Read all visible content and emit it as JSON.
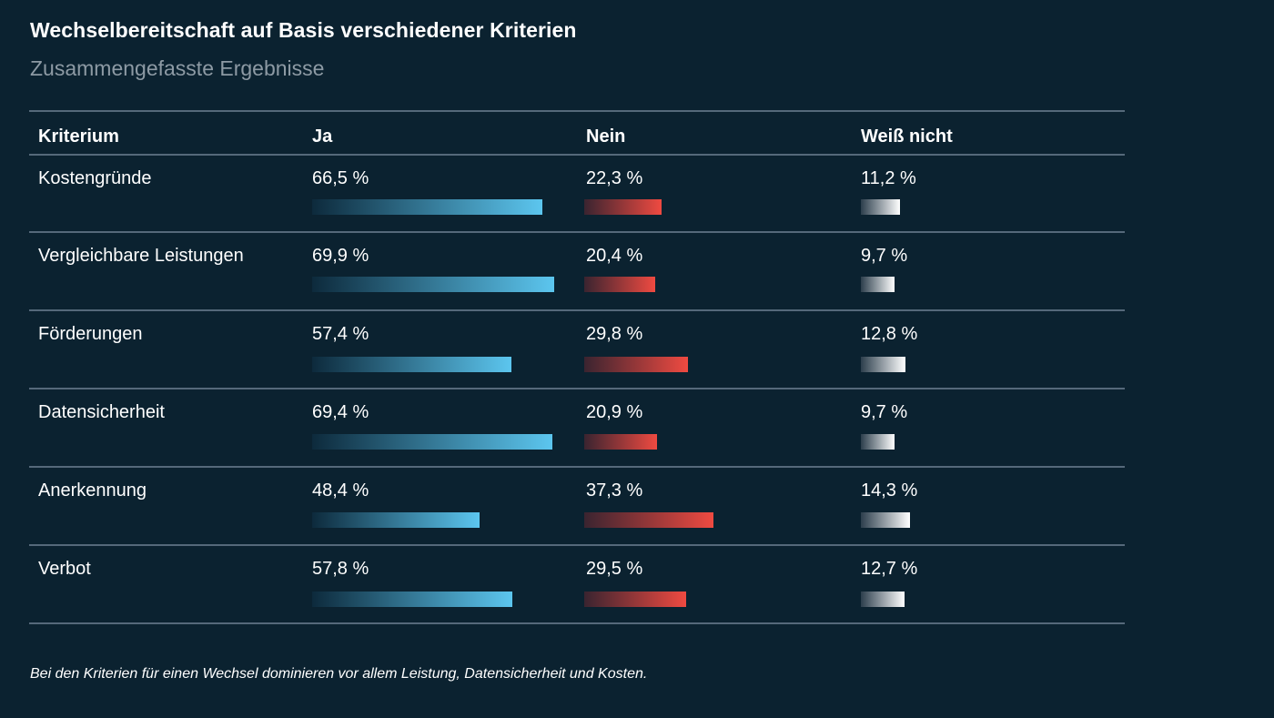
{
  "title": "Wechselbereitschaft auf Basis verschiedener Kriterien",
  "subtitle": "Zusammengefasste Ergebnisse",
  "footnote": "Bei den Kriterien für einen Wechsel dominieren vor allem Leistung, Datensicherheit und Kosten.",
  "columns": {
    "kriterium": "Kriterium",
    "ja": "Ja",
    "nein": "Nein",
    "weiss_nicht": "Weiß nicht"
  },
  "colors": {
    "background": "#0b2230",
    "ja": "#5cc6ef",
    "nein": "#ef4a41",
    "weiss_nicht": "#ffffff"
  },
  "chart_data": {
    "type": "table",
    "title": "Wechselbereitschaft auf Basis verschiedener Kriterien",
    "subtitle": "Zusammengefasste Ergebnisse",
    "unit": "%",
    "categories": [
      "Kostengründe",
      "Vergleichbare Leistungen",
      "Förderungen",
      "Datensicherheit",
      "Anerkennung",
      "Verbot"
    ],
    "series": [
      {
        "name": "Ja",
        "values": [
          66.5,
          69.9,
          57.4,
          69.4,
          48.4,
          57.8
        ],
        "labels": [
          "66,5 %",
          "69,9 %",
          "57,4 %",
          "69,4 %",
          "48,4 %",
          "57,8 %"
        ]
      },
      {
        "name": "Nein",
        "values": [
          22.3,
          20.4,
          29.8,
          20.9,
          37.3,
          29.5
        ],
        "labels": [
          "22,3 %",
          "20,4 %",
          "29,8 %",
          "20,9 %",
          "37,3 %",
          "29,5 %"
        ]
      },
      {
        "name": "Weiß nicht",
        "values": [
          11.2,
          9.7,
          12.8,
          9.7,
          14.3,
          12.7
        ],
        "labels": [
          "11,2 %",
          "9,7 %",
          "12,8 %",
          "9,7 %",
          "14,3 %",
          "12,7 %"
        ]
      }
    ],
    "rows": [
      {
        "kriterium": "Kostengründe",
        "ja": 66.5,
        "ja_label": "66,5 %",
        "nein": 22.3,
        "nein_label": "22,3 %",
        "wn": 11.2,
        "wn_label": "11,2 %"
      },
      {
        "kriterium": "Vergleichbare Leistungen",
        "ja": 69.9,
        "ja_label": "69,9 %",
        "nein": 20.4,
        "nein_label": "20,4 %",
        "wn": 9.7,
        "wn_label": "9,7 %"
      },
      {
        "kriterium": "Förderungen",
        "ja": 57.4,
        "ja_label": "57,4 %",
        "nein": 29.8,
        "nein_label": "29,8 %",
        "wn": 12.8,
        "wn_label": "12,8 %"
      },
      {
        "kriterium": "Datensicherheit",
        "ja": 69.4,
        "ja_label": "69,4 %",
        "nein": 20.9,
        "nein_label": "20,9 %",
        "wn": 9.7,
        "wn_label": "9,7 %"
      },
      {
        "kriterium": "Anerkennung",
        "ja": 48.4,
        "ja_label": "48,4 %",
        "nein": 37.3,
        "nein_label": "37,3 %",
        "wn": 14.3,
        "wn_label": "14,3 %"
      },
      {
        "kriterium": "Verbot",
        "ja": 57.8,
        "ja_label": "57,8 %",
        "nein": 29.5,
        "nein_label": "29,5 %",
        "wn": 12.7,
        "wn_label": "12,7 %"
      }
    ]
  }
}
